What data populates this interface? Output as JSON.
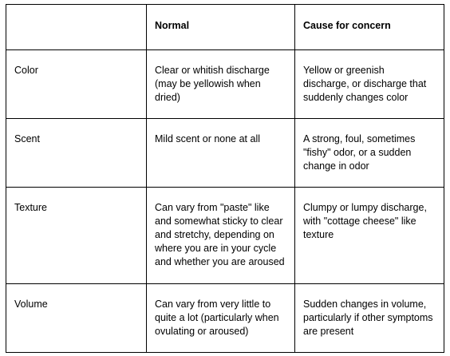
{
  "table": {
    "header": [
      "",
      "Normal",
      "Cause for concern"
    ],
    "rows": [
      {
        "label": "Color",
        "normal": [
          "Clear or whitish discharge",
          "(may be yellowish when",
          "dried)"
        ],
        "concern": [
          "Yellow or greenish",
          "discharge, or discharge that",
          "suddenly changes color"
        ]
      },
      {
        "label": "Scent",
        "normal": [
          "Mild scent or none at all"
        ],
        "concern": [
          "A strong, foul, sometimes",
          "\"fishy\" odor, or a sudden",
          "change in odor"
        ]
      },
      {
        "label": "Texture",
        "normal": [
          "Can vary from \"paste\" like",
          "and somewhat sticky to clear",
          "and stretchy, depending on",
          "where you are in your cycle",
          "and whether you are aroused"
        ],
        "concern": [
          "Clumpy or lumpy discharge,",
          "with \"cottage cheese\" like",
          "texture"
        ]
      },
      {
        "label": "Volume",
        "normal": [
          "Can vary from very little to",
          "quite a lot (particularly when",
          "ovulating or aroused)"
        ],
        "concern": [
          "Sudden changes in volume,",
          "particularly if other symptoms",
          "are present"
        ]
      }
    ]
  }
}
